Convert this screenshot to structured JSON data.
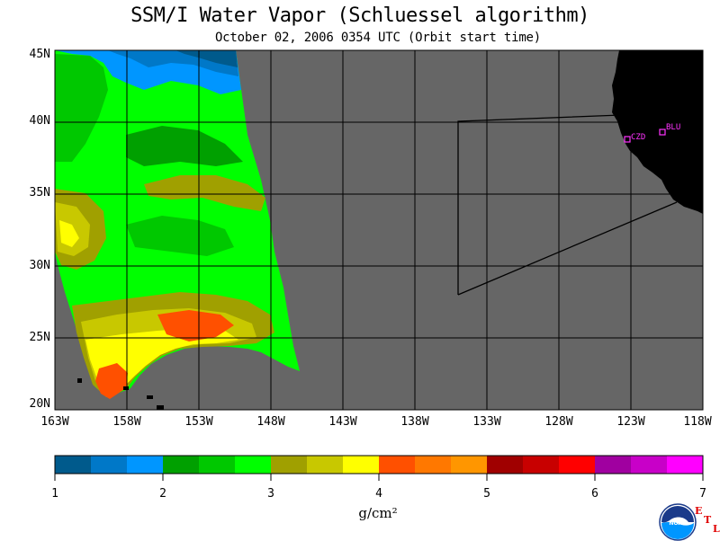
{
  "header": {
    "title": "SSM/I Water Vapor (Schluessel algorithm)",
    "subtitle": "October 02, 2006  0354 UTC  (Orbit start time)"
  },
  "map": {
    "latitude_labels": [
      "45N",
      "40N",
      "35N",
      "30N",
      "25N",
      "20N"
    ],
    "longitude_labels": [
      "163W",
      "158W",
      "153W",
      "148W",
      "143W",
      "138W",
      "133W",
      "128W",
      "123W",
      "118W"
    ],
    "stations": [
      {
        "name": "CZD",
        "lon": -123.2,
        "lat": 38.6
      },
      {
        "name": "BLU",
        "lon": -121.0,
        "lat": 39.3
      }
    ],
    "colors": {
      "no_data": "#666666",
      "land": "#000000",
      "grid": "#000000",
      "station": "#ff33ff"
    }
  },
  "colorbar": {
    "units": "g/cm²",
    "tick_labels": [
      "1",
      "2",
      "3",
      "4",
      "5",
      "6",
      "7"
    ],
    "range": [
      1,
      7
    ],
    "colors": [
      "#005a8c",
      "#0078c8",
      "#0096ff",
      "#00a000",
      "#00c800",
      "#00ff00",
      "#a0a000",
      "#c8c800",
      "#ffff00",
      "#ff5000",
      "#ff7800",
      "#ff9600",
      "#a00000",
      "#c80000",
      "#ff0000",
      "#a000a0",
      "#c800c8",
      "#ff00ff"
    ]
  },
  "logo": {
    "name": "NOAA",
    "etl_letters": [
      "E",
      "T",
      "L"
    ]
  }
}
